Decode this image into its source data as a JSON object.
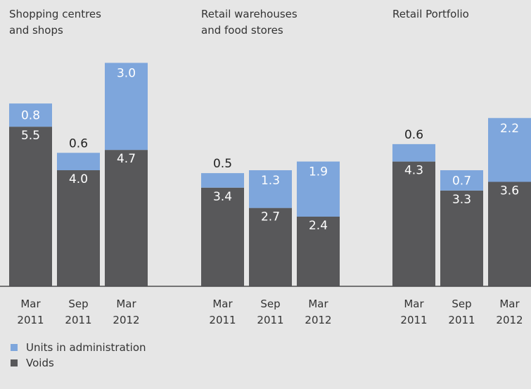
{
  "chart_data": {
    "type": "bar",
    "stacked": true,
    "ylim": [
      0,
      8
    ],
    "baseline_color": "#4d4d4f",
    "panels": [
      {
        "title": "Shopping centres\nand shops",
        "categories": [
          "Mar\n2011",
          "Sep\n2011",
          "Mar\n2012"
        ]
      },
      {
        "title": "Retail warehouses\nand food stores",
        "categories": [
          "Mar\n2011",
          "Sep\n2011",
          "Mar\n2012"
        ]
      },
      {
        "title": "Retail Portfolio",
        "categories": [
          "Mar\n2011",
          "Sep\n2011",
          "Mar\n2012"
        ]
      }
    ],
    "series": [
      {
        "name": "Units in administration",
        "color": "#7ea6dc",
        "values": [
          [
            0.8,
            0.6,
            3.0
          ],
          [
            0.5,
            1.3,
            1.9
          ],
          [
            0.6,
            0.7,
            2.2
          ]
        ],
        "value_labels": [
          [
            "0.8",
            "0.6",
            "3.0"
          ],
          [
            "0.5",
            "1.3",
            "1.9"
          ],
          [
            "0.6",
            "0.7",
            "2.2"
          ]
        ]
      },
      {
        "name": "Voids",
        "color": "#58585a",
        "values": [
          [
            5.5,
            4.0,
            4.7
          ],
          [
            3.4,
            2.7,
            2.4
          ],
          [
            4.3,
            3.3,
            3.6
          ]
        ],
        "value_labels": [
          [
            "5.5",
            "4.0",
            "4.7"
          ],
          [
            "3.4",
            "2.7",
            "2.4"
          ],
          [
            "4.3",
            "3.3",
            "3.6"
          ]
        ]
      }
    ]
  }
}
